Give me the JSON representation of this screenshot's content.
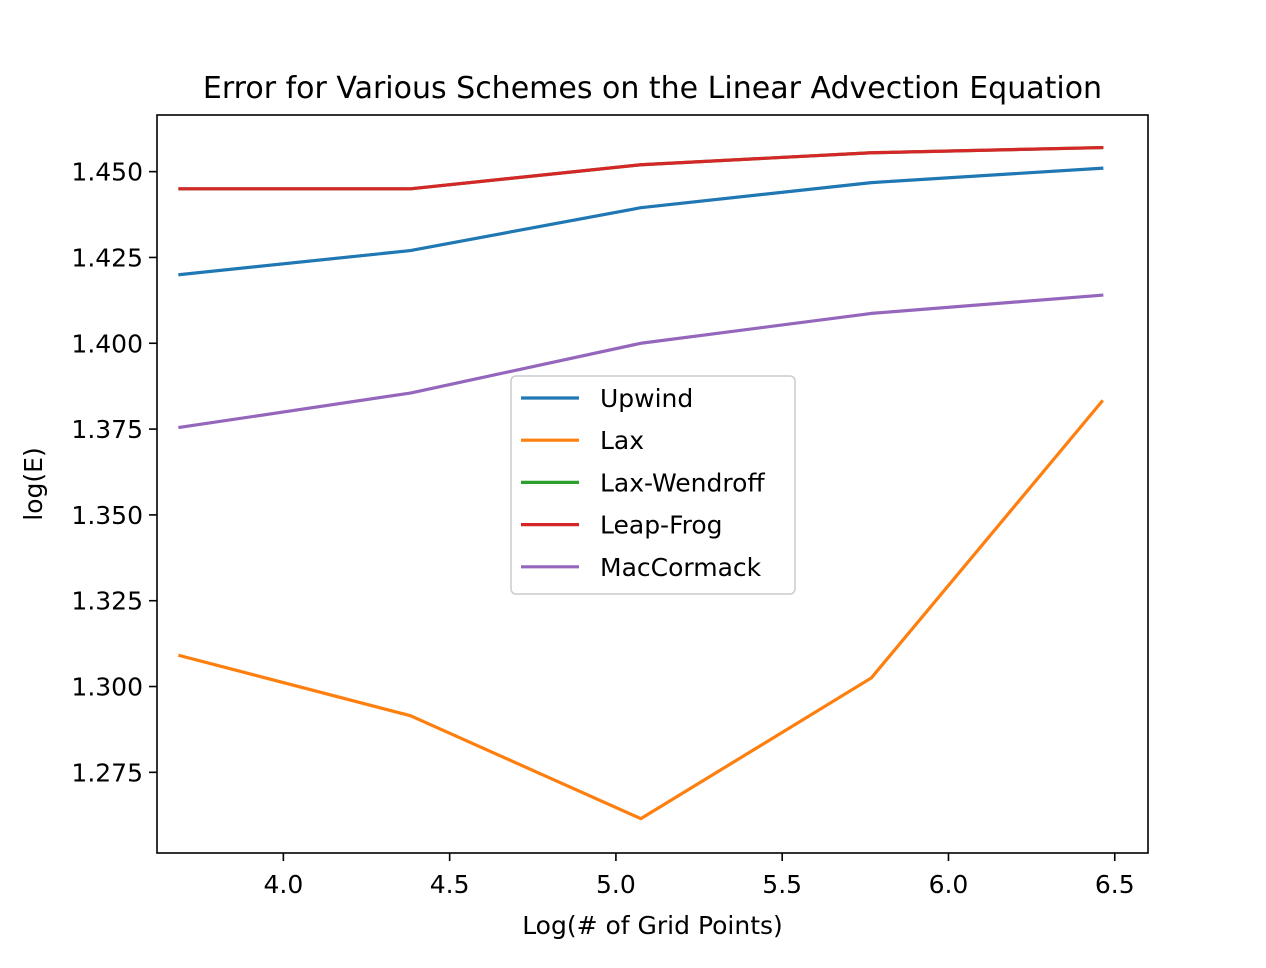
{
  "chart_data": {
    "type": "line",
    "title": "Error for Various Schemes on the Linear Advection Equation",
    "xlabel": "Log(# of Grid Points)",
    "ylabel": "log(E)",
    "xlim": [
      3.62,
      6.6
    ],
    "ylim": [
      1.2515,
      1.4665
    ],
    "xticks": [
      4.0,
      4.5,
      5.0,
      5.5,
      6.0,
      6.5
    ],
    "xtick_labels": [
      "4.0",
      "4.5",
      "5.0",
      "5.5",
      "6.0",
      "6.5"
    ],
    "yticks": [
      1.275,
      1.3,
      1.325,
      1.35,
      1.375,
      1.4,
      1.425,
      1.45
    ],
    "ytick_labels": [
      "1.275",
      "1.300",
      "1.325",
      "1.350",
      "1.375",
      "1.400",
      "1.425",
      "1.450"
    ],
    "grid": false,
    "legend_position": "center",
    "x": [
      3.689,
      4.382,
      5.075,
      5.768,
      6.461
    ],
    "series": [
      {
        "name": "Upwind",
        "color": "#1f77b4",
        "values": [
          1.42,
          1.427,
          1.4395,
          1.4468,
          1.451
        ]
      },
      {
        "name": "Lax",
        "color": "#ff7f0e",
        "values": [
          1.309,
          1.2915,
          1.2615,
          1.3025,
          1.383
        ]
      },
      {
        "name": "Lax-Wendroff",
        "color": "#2ca02c",
        "values": [
          1.445,
          1.445,
          1.452,
          1.4555,
          1.457
        ]
      },
      {
        "name": "Leap-Frog",
        "color": "#d62728",
        "values": [
          1.445,
          1.445,
          1.452,
          1.4555,
          1.457
        ]
      },
      {
        "name": "MacCormack",
        "color": "#9467bd",
        "values": [
          1.3755,
          1.3855,
          1.4,
          1.4087,
          1.414
        ]
      }
    ]
  }
}
